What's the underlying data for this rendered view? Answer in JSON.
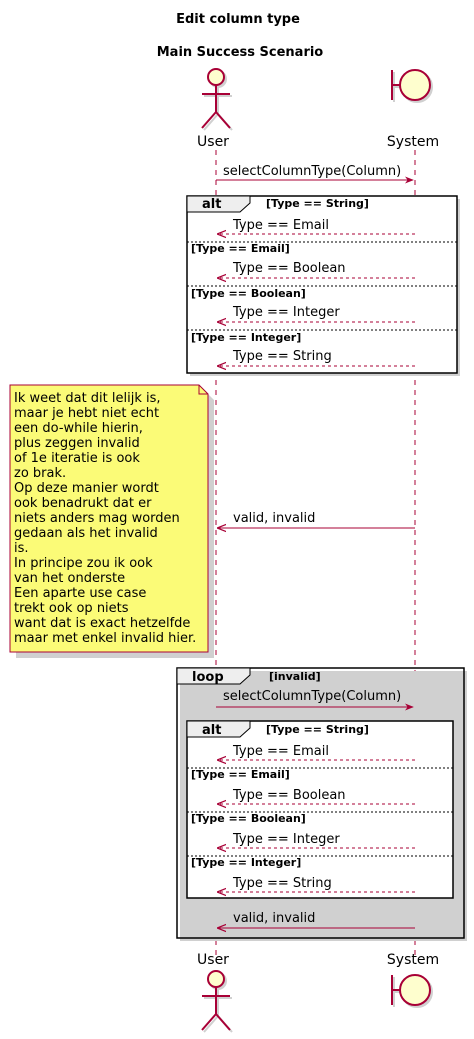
{
  "diagram": {
    "title": "Edit column type",
    "subtitle": "Main Success Scenario",
    "participants": {
      "user": "User",
      "system": "System"
    },
    "colors": {
      "accent": "#A80036",
      "participant_fill": "#FEFECE",
      "frame_label_fill": "#EEEEEE",
      "note_fill": "#FBFB77",
      "shadow": "#d0d0d0"
    },
    "first_call": "selectColumnType(Column)",
    "alt1": {
      "keyword": "alt",
      "sections": [
        {
          "guard": "[Type == String]",
          "reply": "Type == Email"
        },
        {
          "guard": "[Type == Email]",
          "reply": "Type == Boolean"
        },
        {
          "guard": "[Type == Boolean]",
          "reply": "Type == Integer"
        },
        {
          "guard": "[Type == Integer]",
          "reply": "Type == String"
        }
      ]
    },
    "note_lines": [
      "Ik weet dat dit lelijk is,",
      "maar je hebt niet echt",
      "een do-while hierin,",
      "plus zeggen invalid",
      "of 1e iteratie is ook",
      "zo brak.",
      "Op deze manier wordt",
      "ook benadrukt dat er",
      "niets anders mag worden",
      "gedaan als het invalid",
      "is.",
      "In principe zou ik ook",
      "van het onderste",
      "Een aparte use case",
      "trekt ook op niets",
      "want dat is exact hetzelfde",
      "maar met enkel invalid hier."
    ],
    "valid_reply_1": "valid, invalid",
    "loop": {
      "keyword": "loop",
      "guard": "[invalid]",
      "call": "selectColumnType(Column)",
      "alt": {
        "keyword": "alt",
        "sections": [
          {
            "guard": "[Type == String]",
            "reply": "Type == Email"
          },
          {
            "guard": "[Type == Email]",
            "reply": "Type == Boolean"
          },
          {
            "guard": "[Type == Boolean]",
            "reply": "Type == Integer"
          },
          {
            "guard": "[Type == Integer]",
            "reply": "Type == String"
          }
        ]
      },
      "reply": "valid, invalid"
    }
  }
}
